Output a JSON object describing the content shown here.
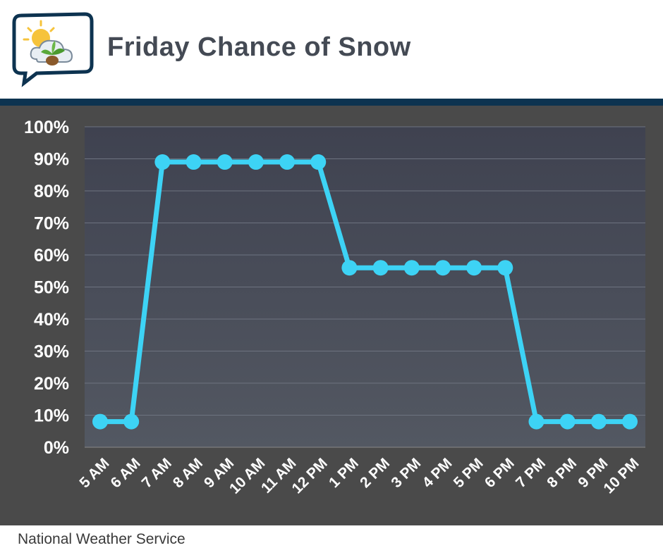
{
  "header": {
    "title": "Friday Chance of Snow",
    "logo_icon": "weather-bubble-logo-icon"
  },
  "footer": {
    "source": "National Weather Service"
  },
  "colors": {
    "line": "#3dd3f5",
    "header_bar": "#0d3350",
    "plot_bg": "#4a4a4a",
    "plot_area_top": "#3f4250",
    "plot_area_bottom": "#535862",
    "title_text": "#444a54"
  },
  "chart_data": {
    "type": "line",
    "title": "Friday Chance of Snow",
    "xlabel": "",
    "ylabel": "",
    "categories": [
      "5 AM",
      "6 AM",
      "7 AM",
      "8 AM",
      "9 AM",
      "10 AM",
      "11 AM",
      "12 PM",
      "1 PM",
      "2 PM",
      "3 PM",
      "4 PM",
      "5 PM",
      "6 PM",
      "7 PM",
      "8 PM",
      "9 PM",
      "10 PM"
    ],
    "series": [
      {
        "values": [
          8,
          8,
          89,
          89,
          89,
          89,
          89,
          89,
          56,
          56,
          56,
          56,
          56,
          56,
          8,
          8,
          8,
          8
        ]
      }
    ],
    "ylim": [
      0,
      100
    ],
    "yticks": [
      "0%",
      "10%",
      "20%",
      "30%",
      "40%",
      "50%",
      "60%",
      "70%",
      "80%",
      "90%",
      "100%"
    ],
    "grid": true,
    "legend": "none"
  }
}
